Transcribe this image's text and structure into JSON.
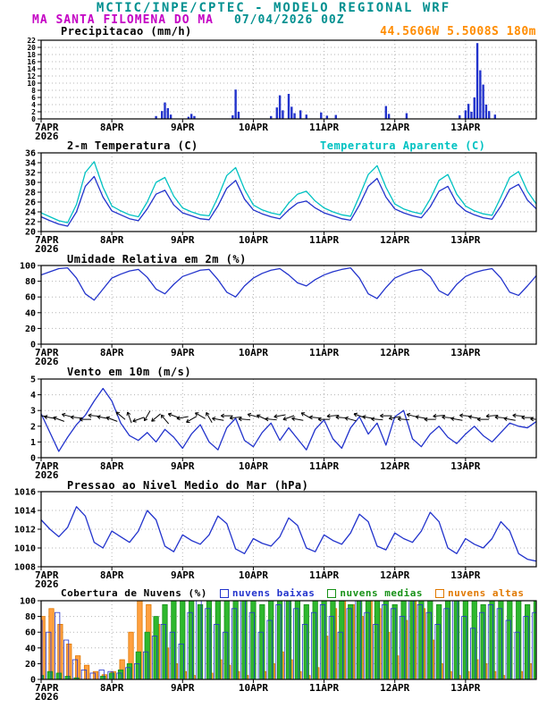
{
  "header": {
    "title": "MCTIC/INPE/CPTEC - MODELO REGIONAL WRF",
    "station": "MA SANTA FILOMENA DO MA",
    "run": "07/04/2026 00Z",
    "coords": "44.5606W 5.5008S 180m",
    "colors": {
      "teal": "#009090",
      "magenta": "#c400c4",
      "orange": "#ff8c00"
    }
  },
  "x_axis": {
    "t_max": 168,
    "ticks": [
      {
        "t": 0,
        "label": "7APR",
        "sublabel": "2026"
      },
      {
        "t": 24,
        "label": "8APR"
      },
      {
        "t": 48,
        "label": "9APR"
      },
      {
        "t": 72,
        "label": "10APR"
      },
      {
        "t": 96,
        "label": "11APR"
      },
      {
        "t": 120,
        "label": "12APR"
      },
      {
        "t": 144,
        "label": "13APR"
      }
    ]
  },
  "chart_data": [
    {
      "type": "bar",
      "title": "Precipitacao (mm/h)",
      "ylim": [
        0,
        22
      ],
      "yticks": [
        0,
        2,
        4,
        6,
        8,
        10,
        12,
        14,
        16,
        18,
        20,
        22
      ],
      "bar_color": "#2233cc",
      "bars": [
        [
          39,
          0.8
        ],
        [
          41,
          2.2
        ],
        [
          42,
          4.6
        ],
        [
          43,
          3.0
        ],
        [
          44,
          1.2
        ],
        [
          50,
          0.6
        ],
        [
          51,
          1.4
        ],
        [
          52,
          0.8
        ],
        [
          65,
          1.0
        ],
        [
          66,
          8.2
        ],
        [
          67,
          2.0
        ],
        [
          78,
          0.8
        ],
        [
          80,
          3.2
        ],
        [
          81,
          6.6
        ],
        [
          82,
          2.4
        ],
        [
          84,
          7.0
        ],
        [
          85,
          3.4
        ],
        [
          86,
          1.6
        ],
        [
          88,
          2.4
        ],
        [
          90,
          1.2
        ],
        [
          95,
          1.8
        ],
        [
          97,
          0.9
        ],
        [
          100,
          1.1
        ],
        [
          117,
          3.6
        ],
        [
          118,
          1.4
        ],
        [
          124,
          1.6
        ],
        [
          142,
          1.0
        ],
        [
          144,
          2.4
        ],
        [
          145,
          4.2
        ],
        [
          146,
          2.0
        ],
        [
          147,
          6.0
        ],
        [
          148,
          21.2
        ],
        [
          149,
          13.6
        ],
        [
          150,
          9.6
        ],
        [
          151,
          4.0
        ],
        [
          152,
          2.2
        ],
        [
          154,
          1.2
        ]
      ]
    },
    {
      "type": "line",
      "title": "2-m Temperatura (C)",
      "ylim": [
        20,
        36
      ],
      "yticks": [
        20,
        22,
        24,
        26,
        28,
        30,
        32,
        34,
        36
      ],
      "t_step": 3,
      "series": [
        {
          "name": "2-m Temperatura (C)",
          "color": "#2233cc",
          "values": [
            23.0,
            22.2,
            21.5,
            21.1,
            24.0,
            29.2,
            31.2,
            27.0,
            24.2,
            23.4,
            22.6,
            22.2,
            24.6,
            27.6,
            28.4,
            25.4,
            23.8,
            23.2,
            22.6,
            22.4,
            25.2,
            28.8,
            30.4,
            26.6,
            24.4,
            23.6,
            23.0,
            22.6,
            24.4,
            25.8,
            26.2,
            24.8,
            23.8,
            23.2,
            22.6,
            22.3,
            25.4,
            29.2,
            30.8,
            27.0,
            24.6,
            23.8,
            23.2,
            22.8,
            25.0,
            28.2,
            29.2,
            25.8,
            24.2,
            23.4,
            22.8,
            22.5,
            25.2,
            28.6,
            29.6,
            26.4,
            24.6
          ]
        },
        {
          "name": "Temperatura Aparente (C)",
          "color": "#00c2c2",
          "values": [
            23.8,
            23.0,
            22.2,
            21.8,
            25.5,
            32.0,
            34.2,
            29.0,
            25.2,
            24.2,
            23.4,
            23.0,
            26.0,
            30.0,
            31.0,
            27.2,
            24.8,
            24.0,
            23.4,
            23.2,
            27.0,
            31.4,
            33.0,
            28.6,
            25.4,
            24.4,
            23.8,
            23.4,
            25.8,
            27.6,
            28.2,
            26.2,
            24.8,
            24.0,
            23.4,
            23.1,
            27.2,
            31.6,
            33.4,
            29.0,
            25.6,
            24.6,
            24.0,
            23.6,
            26.6,
            30.4,
            31.6,
            27.6,
            25.2,
            24.2,
            23.6,
            23.3,
            27.0,
            31.0,
            32.2,
            28.2,
            25.6
          ]
        }
      ]
    },
    {
      "type": "line",
      "title": "Umidade Relativa em 2m (%)",
      "ylim": [
        0,
        100
      ],
      "yticks": [
        0,
        20,
        40,
        60,
        80,
        100
      ],
      "t_step": 3,
      "series": [
        {
          "name": "Umidade Relativa",
          "color": "#2233cc",
          "values": [
            88,
            92,
            96,
            97,
            84,
            64,
            56,
            70,
            84,
            89,
            93,
            95,
            85,
            70,
            64,
            76,
            86,
            90,
            94,
            95,
            82,
            66,
            60,
            74,
            84,
            90,
            94,
            96,
            88,
            78,
            74,
            82,
            88,
            92,
            95,
            97,
            84,
            64,
            58,
            72,
            84,
            89,
            93,
            95,
            86,
            68,
            62,
            76,
            86,
            91,
            94,
            96,
            84,
            66,
            62,
            74,
            87
          ]
        }
      ]
    },
    {
      "type": "line",
      "title": "Vento em 10m (m/s)",
      "ylim": [
        0,
        5
      ],
      "yticks": [
        0,
        1,
        2,
        3,
        4,
        5
      ],
      "t_step": 3,
      "series": [
        {
          "name": "Vento em 10m",
          "color": "#2233cc",
          "values": [
            2.8,
            1.6,
            0.4,
            1.3,
            2.1,
            2.7,
            3.6,
            4.4,
            3.6,
            2.2,
            1.4,
            1.1,
            1.6,
            1.0,
            1.8,
            1.3,
            0.6,
            1.5,
            2.1,
            1.0,
            0.5,
            1.9,
            2.5,
            1.1,
            0.7,
            1.6,
            2.2,
            1.1,
            1.9,
            1.2,
            0.5,
            1.8,
            2.4,
            1.2,
            0.6,
            1.9,
            2.6,
            1.5,
            2.2,
            0.8,
            2.6,
            3.0,
            1.2,
            0.7,
            1.5,
            2.0,
            1.3,
            0.9,
            1.5,
            2.0,
            1.4,
            1.0,
            1.6,
            2.2,
            2.0,
            1.9,
            2.3
          ]
        }
      ],
      "barbs": {
        "level": 2.55,
        "dirs": [
          185,
          190,
          200,
          195,
          185,
          180,
          185,
          190,
          200,
          220,
          250,
          160,
          120,
          140,
          230,
          200,
          170,
          150,
          210,
          240,
          190,
          180,
          175,
          185,
          195,
          205,
          185,
          170,
          160,
          190,
          210,
          185,
          180,
          175,
          185,
          195,
          200,
          190,
          185,
          180,
          170,
          185,
          195,
          190,
          180,
          175,
          185,
          190,
          185,
          190,
          180,
          175,
          185,
          190,
          185,
          180,
          185
        ]
      }
    },
    {
      "type": "line",
      "title": "Pressao ao Nivel Medio do Mar (hPa)",
      "ylim": [
        1008,
        1016
      ],
      "yticks": [
        1008,
        1010,
        1012,
        1014,
        1016
      ],
      "t_step": 3,
      "series": [
        {
          "name": "Pressao ao Nivel Medio do Mar",
          "color": "#2233cc",
          "values": [
            1013.0,
            1012.0,
            1011.2,
            1012.2,
            1014.4,
            1013.4,
            1010.6,
            1010.0,
            1011.8,
            1011.2,
            1010.6,
            1011.8,
            1014.0,
            1013.0,
            1010.2,
            1009.6,
            1011.4,
            1010.8,
            1010.4,
            1011.4,
            1013.4,
            1012.6,
            1009.9,
            1009.4,
            1011.0,
            1010.5,
            1010.2,
            1011.2,
            1013.2,
            1012.4,
            1010.0,
            1009.6,
            1011.4,
            1010.8,
            1010.4,
            1011.6,
            1013.6,
            1012.8,
            1010.2,
            1009.8,
            1011.6,
            1011.0,
            1010.6,
            1011.8,
            1013.8,
            1012.8,
            1010.0,
            1009.4,
            1011.0,
            1010.4,
            1010.0,
            1011.0,
            1012.8,
            1011.8,
            1009.4,
            1008.8,
            1008.6
          ]
        }
      ]
    },
    {
      "type": "cloud-bars",
      "title": "Cobertura de Nuvens (%)",
      "ylim": [
        0,
        100
      ],
      "yticks": [
        0,
        20,
        40,
        60,
        80,
        100
      ],
      "t_step": 3,
      "series": [
        {
          "label": "nuvens baixas",
          "kind": "low",
          "fill": "none",
          "stroke": "#2233cc",
          "offset": -1.6,
          "values": [
            75,
            60,
            85,
            50,
            25,
            12,
            8,
            12,
            10,
            8,
            15,
            20,
            35,
            55,
            70,
            60,
            45,
            85,
            100,
            90,
            70,
            60,
            90,
            100,
            85,
            60,
            75,
            95,
            100,
            90,
            70,
            85,
            95,
            80,
            60,
            90,
            100,
            85,
            70,
            95,
            90,
            80,
            100,
            95,
            85,
            70,
            90,
            100,
            80,
            65,
            85,
            95,
            90,
            75,
            60,
            80,
            85
          ]
        },
        {
          "label": "nuvens medias",
          "kind": "mid",
          "fill": "#2eb82e",
          "stroke": "#179117",
          "offset": 0,
          "values": [
            5,
            10,
            8,
            4,
            2,
            0,
            0,
            4,
            8,
            12,
            20,
            35,
            60,
            80,
            95,
            100,
            100,
            100,
            95,
            100,
            100,
            100,
            100,
            100,
            100,
            95,
            100,
            100,
            100,
            100,
            95,
            100,
            100,
            100,
            100,
            95,
            100,
            100,
            100,
            100,
            95,
            100,
            100,
            100,
            100,
            95,
            100,
            100,
            100,
            100,
            95,
            100,
            100,
            100,
            100,
            95,
            100
          ]
        },
        {
          "label": "nuvens altas",
          "kind": "high",
          "fill": "#ffa040",
          "stroke": "#e07800",
          "offset": 1.6,
          "values": [
            80,
            90,
            70,
            45,
            30,
            18,
            10,
            6,
            10,
            25,
            60,
            100,
            95,
            70,
            40,
            20,
            10,
            5,
            0,
            8,
            25,
            18,
            10,
            5,
            0,
            10,
            20,
            35,
            25,
            10,
            5,
            15,
            55,
            90,
            100,
            95,
            80,
            100,
            90,
            60,
            30,
            75,
            100,
            90,
            50,
            20,
            10,
            5,
            10,
            25,
            20,
            10,
            5,
            0,
            10,
            20,
            30
          ]
        }
      ]
    }
  ]
}
